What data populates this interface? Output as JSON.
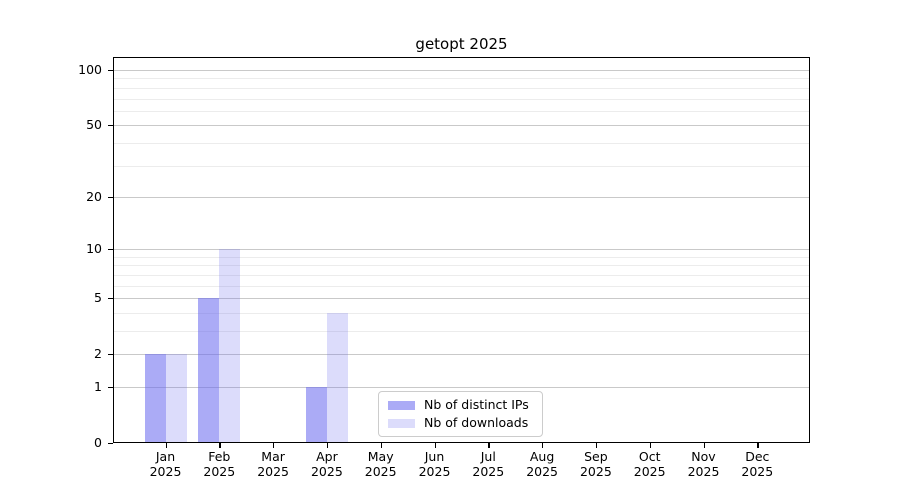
{
  "chart_data": {
    "type": "bar",
    "title": "getopt 2025",
    "categories": [
      "Jan 2025",
      "Feb 2025",
      "Mar 2025",
      "Apr 2025",
      "May 2025",
      "Jun 2025",
      "Jul 2025",
      "Aug 2025",
      "Sep 2025",
      "Oct 2025",
      "Nov 2025",
      "Dec 2025"
    ],
    "series": [
      {
        "name": "Nb of distinct IPs",
        "color": "rgba(102,102,238,0.55)",
        "values": [
          2,
          5,
          0,
          1,
          0,
          0,
          0,
          0,
          0,
          0,
          0,
          0
        ]
      },
      {
        "name": "Nb of downloads",
        "color": "rgba(102,102,238,0.23)",
        "values": [
          2,
          10,
          0,
          4,
          0,
          0,
          0,
          0,
          0,
          0,
          0,
          0
        ]
      }
    ],
    "xlabel": "",
    "ylabel": "",
    "y_scale": "log(value+1)",
    "y_ticks": [
      0,
      1,
      2,
      5,
      10,
      20,
      50,
      100
    ],
    "y_minor_ticks": [
      3,
      4,
      6,
      7,
      8,
      9,
      30,
      40,
      60,
      70,
      80,
      90
    ],
    "ylim": [
      0,
      115
    ],
    "grid": "horizontal",
    "legend_position": "lower center",
    "colors": {
      "major_grid": "#c9c9c9",
      "minor_grid": "#ececec",
      "axis": "#000000",
      "background": "#ffffff"
    }
  }
}
